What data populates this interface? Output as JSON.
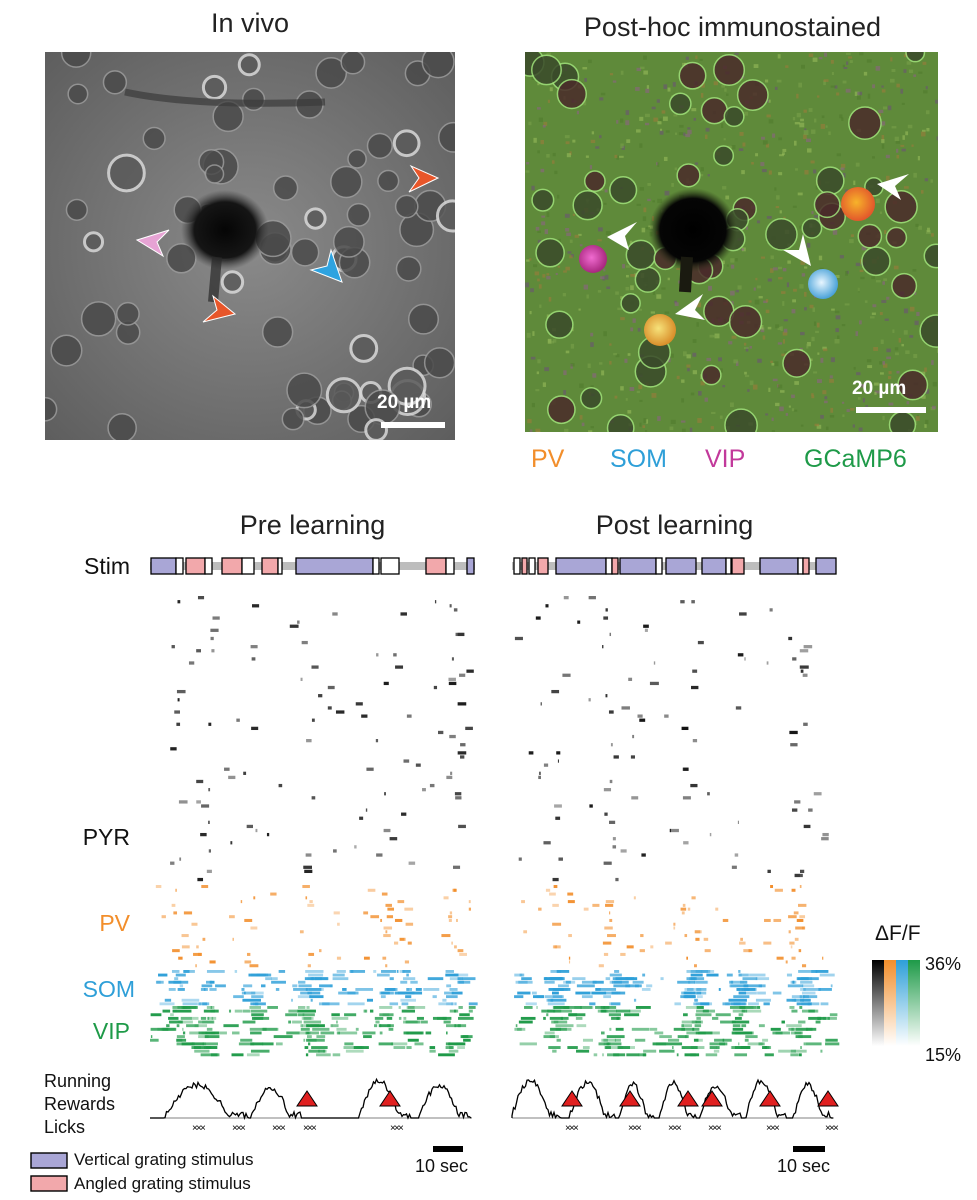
{
  "panels": {
    "in_vivo": {
      "title": "In vivo",
      "scale_bar": "20 µm"
    },
    "post_hoc": {
      "title": "Post-hoc immunostained",
      "scale_bar": "20 µm"
    }
  },
  "stains": [
    {
      "label": "PV",
      "color": "#f28e2b"
    },
    {
      "label": "SOM",
      "color": "#2e9fd8"
    },
    {
      "label": "VIP",
      "color": "#c2399b"
    },
    {
      "label": "GCaMP6",
      "color": "#1e9a48"
    }
  ],
  "raster": {
    "pre_title": "Pre learning",
    "post_title": "Post learning",
    "stim_label": "Stim",
    "rows": [
      {
        "label": "PYR",
        "color": "#111111"
      },
      {
        "label": "PV",
        "color": "#f28e2b"
      },
      {
        "label": "SOM",
        "color": "#2e9fd8"
      },
      {
        "label": "VIP",
        "color": "#1e9a48"
      }
    ],
    "behavior_labels": [
      "Running",
      "Rewards",
      "Licks"
    ],
    "time_scale": "10 sec"
  },
  "colorbar": {
    "title": "ΔF/F",
    "max": "36%",
    "min": "15%"
  },
  "legend": [
    {
      "label": "Vertical grating stimulus",
      "color": "#a9a6d6"
    },
    {
      "label": "Angled grating stimulus",
      "color": "#f2a8ab"
    }
  ]
}
